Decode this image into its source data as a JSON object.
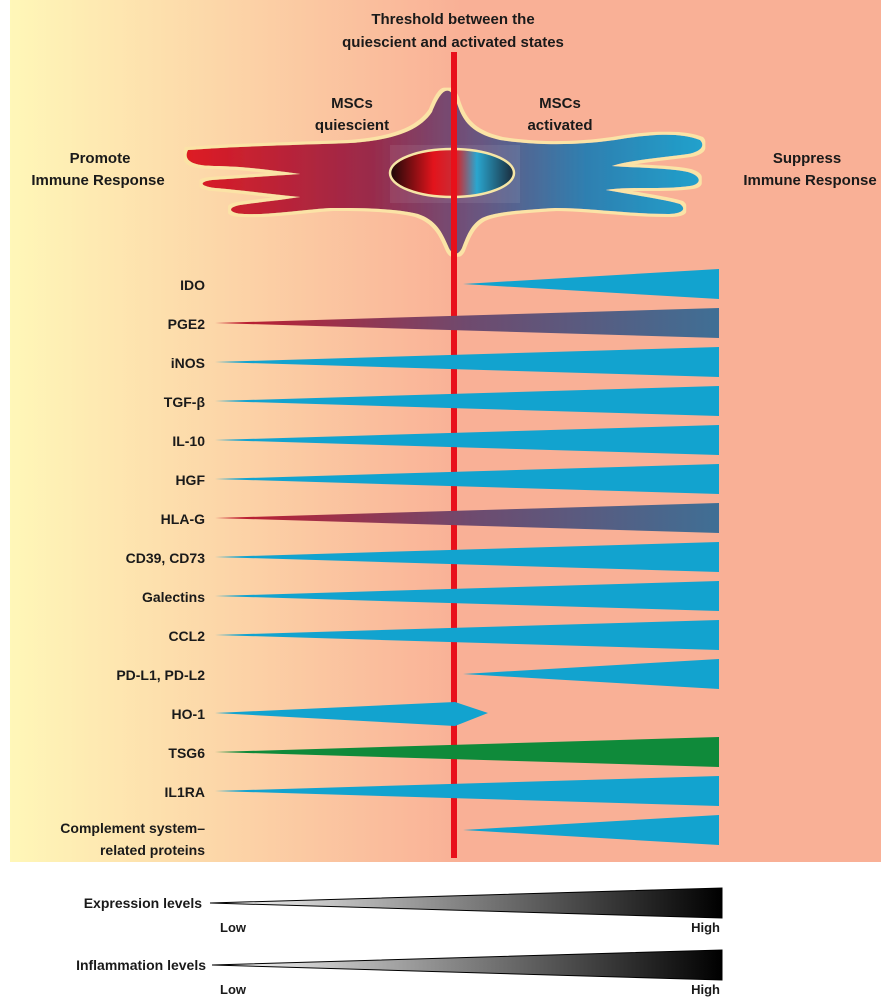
{
  "header": {
    "threshold_line1": "Threshold between the",
    "threshold_line2": "quiescient and activated states",
    "quiescent_line1": "MSCs",
    "quiescent_line2": "quiescient",
    "activated_line1": "MSCs",
    "activated_line2": "activated",
    "promote_line1": "Promote",
    "promote_line2": "Immune Response",
    "suppress_line1": "Suppress",
    "suppress_line2": "Immune Response"
  },
  "rows": [
    {
      "label": "IDO",
      "start": "threshold",
      "end": "high",
      "color": "blue"
    },
    {
      "label": "PGE2",
      "start": "low",
      "end": "high",
      "color": "red-blue"
    },
    {
      "label": "iNOS",
      "start": "low",
      "end": "high",
      "color": "blue"
    },
    {
      "label": "TGF-β",
      "start": "low",
      "end": "high",
      "color": "blue"
    },
    {
      "label": "IL-10",
      "start": "low",
      "end": "high",
      "color": "blue"
    },
    {
      "label": "HGF",
      "start": "low",
      "end": "high",
      "color": "blue"
    },
    {
      "label": "HLA-G",
      "start": "low",
      "end": "high",
      "color": "red-blue"
    },
    {
      "label": "CD39, CD73",
      "start": "low",
      "end": "high",
      "color": "blue"
    },
    {
      "label": "Galectins",
      "start": "low",
      "end": "high",
      "color": "blue"
    },
    {
      "label": "CCL2",
      "start": "low",
      "end": "high",
      "color": "blue"
    },
    {
      "label": "PD-L1, PD-L2",
      "start": "threshold",
      "end": "high",
      "color": "blue"
    },
    {
      "label": "HO-1",
      "start": "low",
      "end": "peak-at-threshold",
      "color": "blue"
    },
    {
      "label": "TSG6",
      "start": "low",
      "end": "high",
      "color": "green"
    },
    {
      "label": "IL1RA",
      "start": "low",
      "end": "high",
      "color": "blue"
    },
    {
      "label_line1": "Complement system–",
      "label_line2": "related proteins",
      "start": "threshold",
      "end": "high",
      "color": "blue"
    }
  ],
  "scales": [
    {
      "label": "Expression levels",
      "low": "Low",
      "high": "High"
    },
    {
      "label": "Inflammation levels",
      "low": "Low",
      "high": "High"
    }
  ],
  "colors": {
    "quiescent_bg": "#fff7b8",
    "activated_bg": "#f9b096",
    "threshold_line": "#e8101a",
    "wedge_blue": "#12a3cf",
    "wedge_red": "#c51a2a",
    "wedge_green": "#0f8a3a"
  }
}
